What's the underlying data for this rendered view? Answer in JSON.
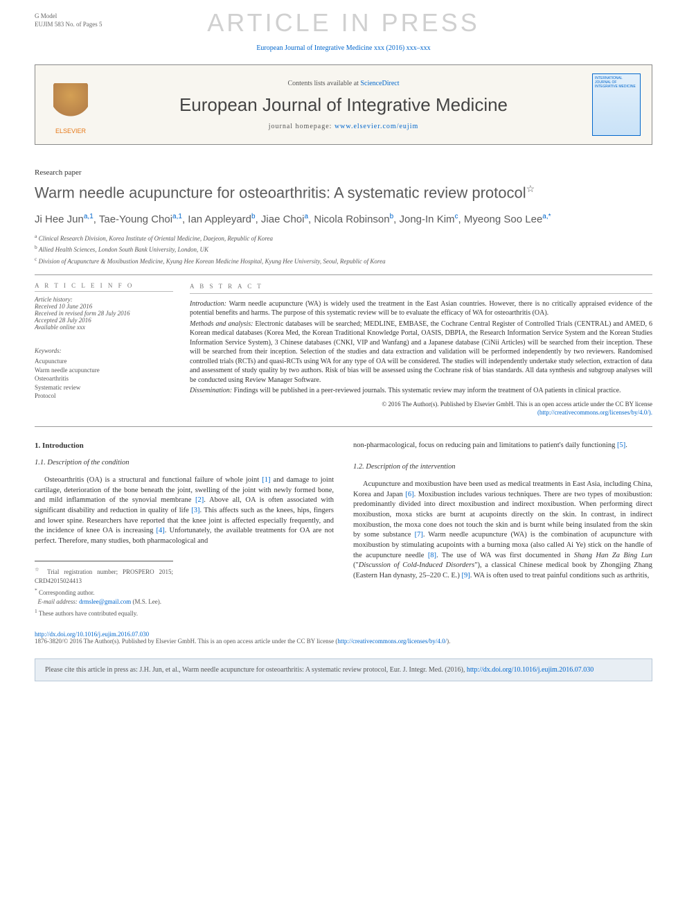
{
  "gmodel": {
    "line1": "G Model",
    "line2": "EUJIM 583 No. of Pages 5"
  },
  "watermark": "ARTICLE IN PRESS",
  "citation_top": "European Journal of Integrative Medicine xxx (2016) xxx–xxx",
  "journal_box": {
    "elsevier": "ELSEVIER",
    "contents_prefix": "Contents lists available at ",
    "contents_link": "ScienceDirect",
    "journal_title": "European Journal of Integrative Medicine",
    "homepage_prefix": "journal homepage: ",
    "homepage_link": "www.elsevier.com/eujim",
    "cover_text": "INTERNATIONAL JOURNAL OF\nINTEGRATIVE\nMEDICINE"
  },
  "paper_type": "Research paper",
  "title": "Warm needle acupuncture for osteoarthritis: A systematic review protocol",
  "title_star": "☆",
  "authors_html": "Ji Hee Jun<sup>a,1</sup>, Tae-Young Choi<sup>a,1</sup>, Ian Appleyard<sup>b</sup>, Jiae Choi<sup>a</sup>, Nicola Robinson<sup>b</sup>, Jong-In Kim<sup>c</sup>, Myeong Soo Lee<sup>a,*</sup>",
  "affiliations": {
    "a": "Clinical Research Division, Korea Institute of Oriental Medicine, Daejeon, Republic of Korea",
    "b": "Allied Health Sciences, London South Bank University, London, UK",
    "c": "Division of Acupuncture & Moxibustion Medicine, Kyung Hee Korean Medicine Hospital, Kyung Hee University, Seoul, Republic of Korea"
  },
  "article_info": {
    "heading": "A R T I C L E   I N F O",
    "history_label": "Article history:",
    "received": "Received 10 June 2016",
    "revised": "Received in revised form 28 July 2016",
    "accepted": "Accepted 28 July 2016",
    "online": "Available online xxx",
    "keywords_label": "Keywords:",
    "keywords": [
      "Acupuncture",
      "Warm needle acupuncture",
      "Osteoarthritis",
      "Systematic review",
      "Protocol"
    ]
  },
  "abstract": {
    "heading": "A B S T R A C T",
    "intro_label": "Introduction:",
    "intro": " Warm needle acupuncture (WA) is widely used the treatment in the East Asian countries. However, there is no critically appraised evidence of the potential benefits and harms. The purpose of this systematic review will be to evaluate the efficacy of WA for osteoarthritis (OA).",
    "methods_label": "Methods and analysis:",
    "methods": " Electronic databases will be searched; MEDLINE, EMBASE, the Cochrane Central Register of Controlled Trials (CENTRAL) and AMED, 6 Korean medical databases (Korea Med, the Korean Traditional Knowledge Portal, OASIS, DBPIA, the Research Information Service System and the Korean Studies Information Service System), 3 Chinese databases (CNKI, VIP and Wanfang) and a Japanese database (CiNii Articles) will be searched from their inception. These will be searched from their inception. Selection of the studies and data extraction and validation will be performed independently by two reviewers. Randomised controlled trials (RCTs) and quasi-RCTs using WA for any type of OA will be considered. The studies will independently undertake study selection, extraction of data and assessment of study quality by two authors. Risk of bias will be assessed using the Cochrane risk of bias standards. All data synthesis and subgroup analyses will be conducted using Review Manager Software.",
    "dissem_label": "Dissemination:",
    "dissem": " Findings will be published in a peer-reviewed journals. This systematic review may inform the treatment of OA patients in clinical practice.",
    "copyright": "© 2016 The Author(s). Published by Elsevier GmbH. This is an open access article under the CC BY license",
    "copyright_link": "(http://creativecommons.org/licenses/by/4.0/)."
  },
  "sections": {
    "s1": "1. Introduction",
    "s1_1": "1.1. Description of the condition",
    "p1": "Osteoarthritis (OA) is a structural and functional failure of whole joint [1] and damage to joint cartilage, deterioration of the bone beneath the joint, swelling of the joint with newly formed bone, and mild inflammation of the synovial membrane [2]. Above all, OA is often associated with significant disability and reduction in quality of life [3]. This affects such as the knees, hips, fingers and lower spine. Researchers have reported that the knee joint is affected especially frequently, and the incidence of knee OA is increasing [4]. Unfortunately, the available treatments for OA are not perfect. Therefore, many studies, both pharmacological and",
    "p2_top": "non-pharmacological, focus on reducing pain and limitations to patient's daily functioning [5].",
    "s1_2": "1.2. Description of the intervention",
    "p3": "Acupuncture and moxibustion have been used as medical treatments in East Asia, including China, Korea and Japan [6]. Moxibustion includes various techniques. There are two types of moxibustion: predominantly divided into direct moxibustion and indirect moxibustion. When performing direct moxibustion, moxa sticks are burnt at acupoints directly on the skin. In contrast, in indirect moxibustion, the moxa cone does not touch the skin and is burnt while being insulated from the skin by some substance [7]. Warm needle acupuncture (WA) is the combination of acupuncture with moxibustion by stimulating acupoints with a burning moxa (also called Ai Ye) stick on the handle of the acupuncture needle [8]. The use of WA was first documented in Shang Han Za Bing Lun (\"Discussion of Cold-Induced Disorders\"), a classical Chinese medical book by Zhongjing Zhang (Eastern Han dynasty, 25–220 C. E.) [9]. WA is often used to treat painful conditions such as arthritis,"
  },
  "footnotes": {
    "trial": "Trial registration number; PROSPERO 2015; CRD42015024413",
    "corresp": "Corresponding author.",
    "email_label": "E-mail address:",
    "email": "drmslee@gmail.com",
    "email_name": "(M.S. Lee).",
    "equal": "These authors have contributed equally."
  },
  "doi": {
    "link": "http://dx.doi.org/10.1016/j.eujim.2016.07.030",
    "issn": "1876-3820/© 2016 The Author(s). Published by Elsevier GmbH. This is an open access article under the CC BY license (",
    "cc_link": "http://creativecommons.org/licenses/by/4.0/",
    "close": ")."
  },
  "cite_box": {
    "text": "Please cite this article in press as: J.H. Jun, et al., Warm needle acupuncture for osteoarthritis: A systematic review protocol, Eur. J. Integr. Med. (2016), ",
    "link": "http://dx.doi.org/10.1016/j.eujim.2016.07.030"
  },
  "colors": {
    "link": "#0066cc",
    "watermark": "#d0d0d0",
    "text": "#333333",
    "muted": "#555555",
    "elsevier": "#e67817",
    "box_bg": "#f8f6f0",
    "cite_bg": "#e8eef4",
    "cite_border": "#b8c8d8"
  }
}
